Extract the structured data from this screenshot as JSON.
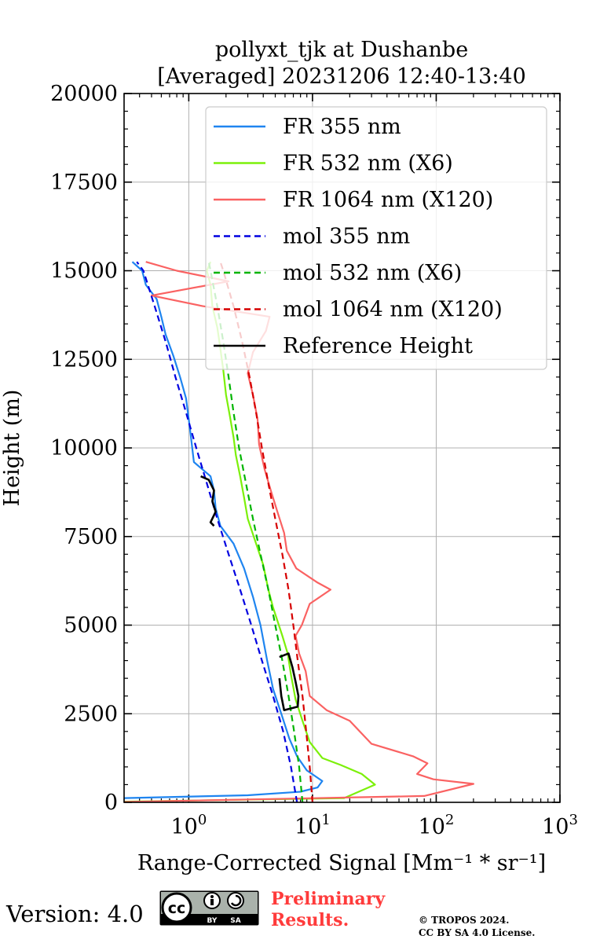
{
  "chart_data": {
    "type": "line",
    "title_line1": "pollyxt_tjk at Dushanbe",
    "title_line2": "[Averaged] 20231206 12:40-13:40",
    "xlabel": "Range-Corrected Signal [Mm⁻¹ * sr⁻¹]",
    "ylabel": "Height (m)",
    "xscale": "log",
    "xlim": [
      0.3,
      1000
    ],
    "ylim": [
      0,
      20000
    ],
    "yticks": [
      0,
      2500,
      5000,
      7500,
      10000,
      12500,
      15000,
      17500,
      20000
    ],
    "ytick_labels": [
      "0",
      "2500",
      "5000",
      "7500",
      "10000",
      "12500",
      "15000",
      "17500",
      "20000"
    ],
    "xtick_labels": [
      {
        "base": "10",
        "exp": "0",
        "value": 1
      },
      {
        "base": "10",
        "exp": "1",
        "value": 10
      },
      {
        "base": "10",
        "exp": "2",
        "value": 100
      },
      {
        "base": "10",
        "exp": "3",
        "value": 1000
      }
    ],
    "grid": true,
    "legend_position": "top-right",
    "series": [
      {
        "name": "FR 355 nm",
        "color": "#1f85f0",
        "style": "solid",
        "points": [
          [
            0.3,
            120
          ],
          [
            3,
            200
          ],
          [
            8,
            300
          ],
          [
            11,
            420
          ],
          [
            12,
            600
          ],
          [
            9,
            900
          ],
          [
            7.5,
            1300
          ],
          [
            6.5,
            1800
          ],
          [
            5.6,
            2500
          ],
          [
            4.8,
            3200
          ],
          [
            4.3,
            4000
          ],
          [
            3.8,
            5000
          ],
          [
            3.3,
            5800
          ],
          [
            2.8,
            6600
          ],
          [
            2.3,
            7300
          ],
          [
            1.8,
            7800
          ],
          [
            1.65,
            8300
          ],
          [
            1.6,
            8800
          ],
          [
            1.5,
            9200
          ],
          [
            1.1,
            9600
          ],
          [
            1.05,
            10200
          ],
          [
            1.0,
            10800
          ],
          [
            0.95,
            11400
          ],
          [
            0.85,
            12000
          ],
          [
            0.75,
            12600
          ],
          [
            0.65,
            13200
          ],
          [
            0.6,
            13700
          ],
          [
            0.55,
            14200
          ],
          [
            0.45,
            14600
          ],
          [
            0.42,
            15000
          ],
          [
            0.35,
            15250
          ]
        ]
      },
      {
        "name": "FR 532 nm (X6)",
        "color": "#7cf00a",
        "style": "solid",
        "points": [
          [
            0.3,
            20
          ],
          [
            18,
            120
          ],
          [
            32,
            500
          ],
          [
            25,
            800
          ],
          [
            17,
            1050
          ],
          [
            12,
            1250
          ],
          [
            9.5,
            1700
          ],
          [
            8.3,
            2300
          ],
          [
            7.3,
            2900
          ],
          [
            6.7,
            3600
          ],
          [
            6.3,
            4200
          ],
          [
            5.7,
            4700
          ],
          [
            4.8,
            5500
          ],
          [
            4.4,
            6000
          ],
          [
            4.0,
            6700
          ],
          [
            3.5,
            7300
          ],
          [
            3.0,
            8000
          ],
          [
            2.8,
            8600
          ],
          [
            2.6,
            9200
          ],
          [
            2.4,
            9800
          ],
          [
            2.3,
            10300
          ],
          [
            2.15,
            10900
          ],
          [
            2.0,
            11500
          ],
          [
            1.9,
            12200
          ],
          [
            1.8,
            12800
          ],
          [
            1.7,
            13400
          ],
          [
            1.55,
            14000
          ],
          [
            1.5,
            14600
          ],
          [
            1.4,
            15000
          ],
          [
            1.5,
            15250
          ]
        ]
      },
      {
        "name": "FR 1064 nm (X120)",
        "color": "#fa6262",
        "style": "solid",
        "points": [
          [
            0.3,
            10
          ],
          [
            80,
            180
          ],
          [
            200,
            520
          ],
          [
            95,
            650
          ],
          [
            70,
            800
          ],
          [
            85,
            1100
          ],
          [
            65,
            1300
          ],
          [
            30,
            1650
          ],
          [
            20,
            2300
          ],
          [
            13,
            2600
          ],
          [
            9.5,
            3000
          ],
          [
            8.8,
            3700
          ],
          [
            7.8,
            4200
          ],
          [
            7.3,
            4700
          ],
          [
            8.2,
            5000
          ],
          [
            9.5,
            5600
          ],
          [
            14,
            6000
          ],
          [
            11,
            6200
          ],
          [
            7.4,
            6600
          ],
          [
            6.2,
            7100
          ],
          [
            5.9,
            7600
          ],
          [
            5.2,
            8200
          ],
          [
            4.6,
            8800
          ],
          [
            4.1,
            9400
          ],
          [
            3.7,
            10100
          ],
          [
            3.6,
            10800
          ],
          [
            3.3,
            11500
          ],
          [
            3.0,
            12100
          ],
          [
            3.3,
            12700
          ],
          [
            4.2,
            13300
          ],
          [
            4.5,
            13700
          ],
          [
            1.3,
            14000
          ],
          [
            0.5,
            14300
          ],
          [
            2.1,
            14700
          ],
          [
            0.8,
            15000
          ],
          [
            0.45,
            15250
          ]
        ]
      },
      {
        "name": "mol 355 nm",
        "color": "#0000e0",
        "style": "dashed",
        "points": [
          [
            7.5,
            0
          ],
          [
            6.7,
            1000
          ],
          [
            5.8,
            2000
          ],
          [
            4.8,
            3000
          ],
          [
            3.9,
            4000
          ],
          [
            3.2,
            5000
          ],
          [
            2.6,
            6000
          ],
          [
            2.1,
            7000
          ],
          [
            1.7,
            8000
          ],
          [
            1.4,
            9000
          ],
          [
            1.15,
            10000
          ],
          [
            0.95,
            11000
          ],
          [
            0.78,
            12000
          ],
          [
            0.65,
            13000
          ],
          [
            0.53,
            14000
          ],
          [
            0.43,
            15000
          ],
          [
            0.38,
            15250
          ]
        ]
      },
      {
        "name": "mol 532 nm (X6)",
        "color": "#00b400",
        "style": "dashed",
        "points": [
          [
            8.3,
            0
          ],
          [
            7.8,
            1000
          ],
          [
            7.1,
            2000
          ],
          [
            6.4,
            3000
          ],
          [
            5.7,
            4000
          ],
          [
            5.0,
            5000
          ],
          [
            4.4,
            6000
          ],
          [
            3.8,
            7000
          ],
          [
            3.3,
            8000
          ],
          [
            2.9,
            9000
          ],
          [
            2.55,
            10000
          ],
          [
            2.3,
            11000
          ],
          [
            2.1,
            12000
          ],
          [
            1.9,
            13000
          ],
          [
            1.7,
            14000
          ],
          [
            1.5,
            15000
          ],
          [
            1.45,
            15250
          ]
        ]
      },
      {
        "name": "mol 1064 nm (X120)",
        "color": "#d60000",
        "style": "dashed",
        "points": [
          [
            10,
            0
          ],
          [
            9.5,
            1000
          ],
          [
            8.9,
            2000
          ],
          [
            8.3,
            3000
          ],
          [
            7.6,
            4000
          ],
          [
            7.0,
            5000
          ],
          [
            6.4,
            6000
          ],
          [
            5.7,
            7000
          ],
          [
            5.0,
            8000
          ],
          [
            4.4,
            9000
          ],
          [
            3.9,
            10000
          ],
          [
            3.5,
            11000
          ],
          [
            3.1,
            12000
          ],
          [
            2.7,
            13000
          ],
          [
            2.3,
            14000
          ],
          [
            1.9,
            15000
          ],
          [
            1.8,
            15250
          ]
        ]
      },
      {
        "name": "Reference Height",
        "color": "#000000",
        "style": "solid",
        "segments": [
          [
            [
              1.25,
              9200
            ],
            [
              1.45,
              9100
            ],
            [
              1.6,
              8800
            ],
            [
              1.55,
              8500
            ],
            [
              1.65,
              8200
            ],
            [
              1.5,
              7900
            ],
            [
              1.6,
              7800
            ]
          ],
          [
            [
              5.4,
              4100
            ],
            [
              6.4,
              4200
            ],
            [
              6.9,
              3800
            ],
            [
              7.3,
              3400
            ],
            [
              7.7,
              3000
            ],
            [
              7.6,
              2700
            ],
            [
              5.9,
              2600
            ],
            [
              5.6,
              3000
            ],
            [
              5.4,
              3500
            ]
          ]
        ]
      }
    ]
  },
  "footer": {
    "version": "Version: 4.0",
    "license_badge": {
      "icon": "cc-by-sa-icon",
      "by_label": "BY",
      "sa_label": "SA",
      "cc_label": "cc"
    },
    "preliminary_line1": "Preliminary",
    "preliminary_line2": "Results.",
    "copyright_line1": "© TROPOS 2024.",
    "copyright_line2": "CC BY SA 4.0 License.",
    "colors": {
      "preliminary": "#ff3b3b",
      "badge_bg": "#aaaaaa"
    }
  }
}
